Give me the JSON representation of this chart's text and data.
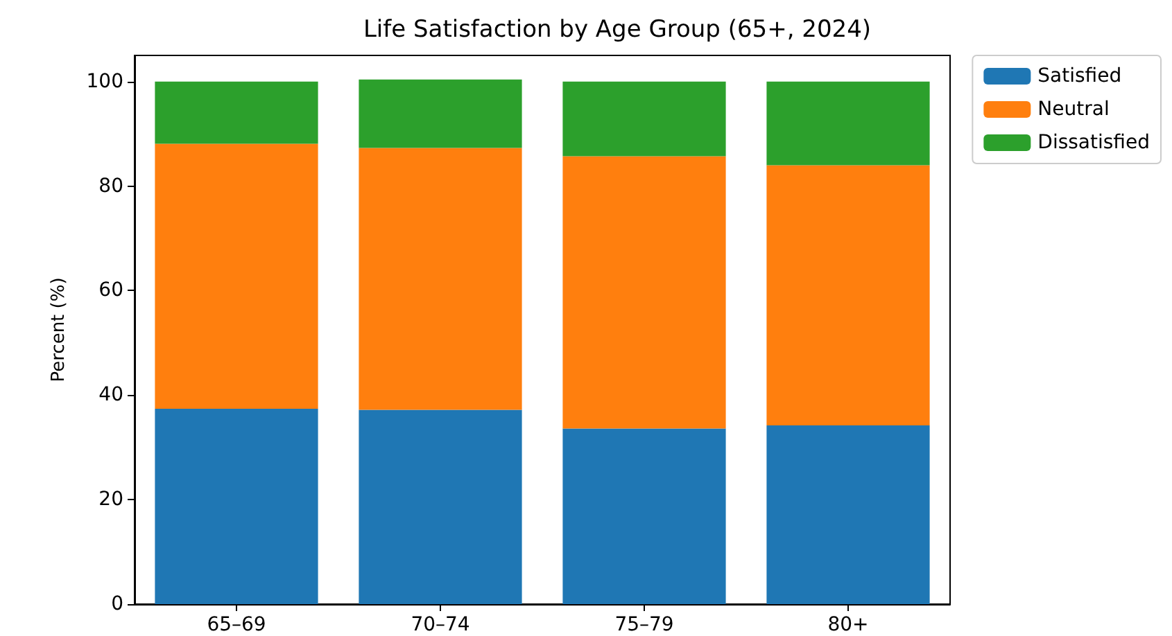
{
  "chart_data": {
    "type": "bar",
    "title": "Life Satisfaction by Age Group (65+, 2024)",
    "ylabel": "Percent (%)",
    "categories": [
      "65–69",
      "70–74",
      "75–79",
      "80+"
    ],
    "stacked": true,
    "series": [
      {
        "name": "Satisfied",
        "color": "#1f77b4",
        "values": [
          37.4,
          37.2,
          33.6,
          34.2
        ]
      },
      {
        "name": "Neutral",
        "color": "#ff7f0e",
        "values": [
          50.7,
          50.1,
          52.1,
          49.8
        ]
      },
      {
        "name": "Dissatisfied",
        "color": "#2ca02c",
        "values": [
          11.9,
          13.1,
          14.3,
          16.0
        ]
      }
    ],
    "ylim": [
      0,
      105
    ],
    "yticks": [
      0,
      20,
      40,
      60,
      80,
      100
    ],
    "grid": false,
    "legend": "top right"
  }
}
